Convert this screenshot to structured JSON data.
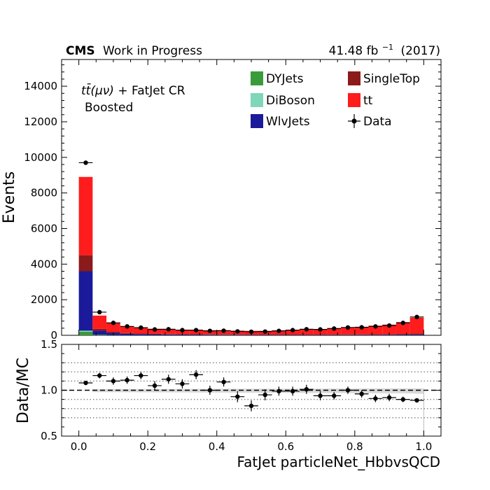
{
  "header": {
    "experiment": "CMS",
    "status": "Work in Progress",
    "lumi": "41.48 fb",
    "lumi_exp": "−1",
    "year": "(2017)"
  },
  "region": {
    "line1_a": "tt̄(μν)",
    "line1_b": " + FatJet CR",
    "line2": "Boosted"
  },
  "chart_data": [
    {
      "type": "bar",
      "stacked": true,
      "ylabel": "Events",
      "ylim": [
        0,
        15500
      ],
      "xlim": [
        -0.05,
        1.05
      ],
      "yticks": [
        0,
        2000,
        4000,
        6000,
        8000,
        10000,
        12000,
        14000
      ],
      "ytick_labels": [
        "0",
        "2000",
        "4000",
        "6000",
        "8000",
        "10000",
        "12000",
        "14000"
      ],
      "bin_edges": [
        0,
        0.04,
        0.08,
        0.12,
        0.16,
        0.2,
        0.24,
        0.28,
        0.32,
        0.36,
        0.4,
        0.44,
        0.48,
        0.52,
        0.56,
        0.6,
        0.64,
        0.68,
        0.72,
        0.76,
        0.8,
        0.84,
        0.88,
        0.92,
        0.96,
        1.0
      ],
      "series": [
        {
          "name": "DYJets",
          "color": "#3a9b3a",
          "values": [
            200,
            20,
            10,
            5,
            5,
            5,
            5,
            5,
            5,
            5,
            5,
            5,
            5,
            5,
            5,
            5,
            5,
            5,
            5,
            5,
            5,
            5,
            5,
            5,
            5
          ]
        },
        {
          "name": "DiBoson",
          "color": "#7fd6b8",
          "values": [
            60,
            8,
            5,
            3,
            2,
            2,
            2,
            2,
            2,
            2,
            2,
            2,
            2,
            2,
            2,
            2,
            2,
            2,
            2,
            2,
            2,
            2,
            2,
            2,
            2
          ]
        },
        {
          "name": "WlvJets",
          "color": "#1a1a9a",
          "values": [
            3340,
            230,
            120,
            80,
            60,
            50,
            40,
            35,
            30,
            25,
            22,
            20,
            18,
            17,
            16,
            16,
            16,
            16,
            17,
            18,
            20,
            22,
            25,
            30,
            40
          ]
        },
        {
          "name": "SingleTop",
          "color": "#8b1a1a",
          "values": [
            900,
            100,
            60,
            40,
            30,
            25,
            22,
            20,
            20,
            18,
            17,
            16,
            15,
            15,
            15,
            16,
            17,
            18,
            20,
            22,
            25,
            28,
            32,
            38,
            50
          ]
        },
        {
          "name": "tt",
          "color": "#ff1c1c",
          "values": [
            4400,
            750,
            515,
            382,
            333,
            288,
            256,
            243,
            233,
            230,
            224,
            217,
            210,
            211,
            222,
            251,
            290,
            314,
            356,
            403,
            428,
            485,
            536,
            665,
            893
          ]
        }
      ],
      "data": {
        "name": "Data",
        "values": [
          9700,
          1300,
          700,
          500,
          430,
          330,
          340,
          290,
          290,
          250,
          260,
          220,
          200,
          210,
          250,
          290,
          340,
          330,
          380,
          440,
          450,
          500,
          550,
          700,
          1030
        ]
      }
    },
    {
      "type": "scatter",
      "ylabel": "Data/MC",
      "xlabel": "FatJet particleNet_HbbvsQCD",
      "ylim": [
        0.5,
        1.5
      ],
      "xlim": [
        -0.05,
        1.05
      ],
      "yticks": [
        0.5,
        1.0,
        1.5
      ],
      "ytick_labels": [
        "0.5",
        "1.0",
        "1.5"
      ],
      "xticks": [
        0.0,
        0.2,
        0.4,
        0.6,
        0.8,
        1.0
      ],
      "xtick_labels": [
        "0.0",
        "0.2",
        "0.4",
        "0.6",
        "0.8",
        "1.0"
      ],
      "reference_line": 1.0,
      "dotted_lines": [
        0.7,
        0.8,
        0.9,
        1.1,
        1.2,
        1.3
      ],
      "x": [
        0.02,
        0.06,
        0.1,
        0.14,
        0.18,
        0.22,
        0.26,
        0.3,
        0.34,
        0.38,
        0.42,
        0.46,
        0.5,
        0.54,
        0.58,
        0.62,
        0.66,
        0.7,
        0.74,
        0.78,
        0.82,
        0.86,
        0.9,
        0.94,
        0.98
      ],
      "y": [
        1.08,
        1.16,
        1.1,
        1.11,
        1.16,
        1.05,
        1.12,
        1.07,
        1.17,
        1.0,
        1.09,
        0.93,
        0.83,
        0.95,
        0.99,
        0.99,
        1.01,
        0.94,
        0.94,
        1.0,
        0.96,
        0.91,
        0.92,
        0.9,
        0.89
      ],
      "yerr": [
        0.01,
        0.03,
        0.04,
        0.04,
        0.04,
        0.05,
        0.05,
        0.05,
        0.05,
        0.05,
        0.05,
        0.06,
        0.06,
        0.06,
        0.05,
        0.05,
        0.05,
        0.05,
        0.04,
        0.04,
        0.04,
        0.04,
        0.04,
        0.03,
        0.02
      ]
    }
  ]
}
